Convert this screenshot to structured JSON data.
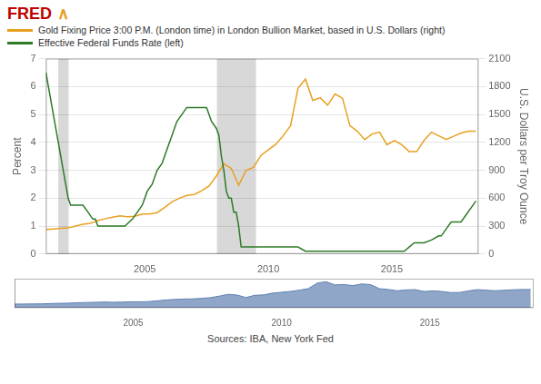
{
  "chart_data": [
    {
      "type": "line",
      "annotations": [
        {
          "text": "FRED",
          "color": "#c00000"
        },
        {
          "text": "∧",
          "color": "#e8a020"
        },
        {
          "text": "Sources: IBA, New York Fed"
        }
      ],
      "ylabel": "Percent",
      "y2label": "U.S. Dollars per Troy Ounce",
      "xlim": [
        2001,
        2018.5
      ],
      "xticks": [
        2005,
        2010,
        2015
      ],
      "ylim": [
        0,
        7
      ],
      "yticks": [
        0,
        1,
        2,
        3,
        4,
        5,
        6,
        7
      ],
      "y2lim": [
        0,
        2100
      ],
      "y2ticks": [
        0,
        300,
        600,
        900,
        1200,
        1500,
        1800,
        2100
      ],
      "grid": true,
      "legend": "top",
      "recessions": {
        "ranges": [
          [
            2001.5,
            2001.92
          ],
          [
            2007.92,
            2009.5
          ]
        ],
        "color": "#d8d8d8"
      },
      "series": [
        {
          "name": "Effective Federal Funds Rate (left)",
          "color": "#2d7a27",
          "axis": "y",
          "x": [
            2001.0,
            2001.1,
            2001.2,
            2001.3,
            2001.5,
            2001.6,
            2001.7,
            2001.8,
            2001.9,
            2002.0,
            2002.1,
            2002.3,
            2002.5,
            2002.7,
            2002.9,
            2003.0,
            2003.1,
            2003.2,
            2003.4,
            2003.6,
            2003.8,
            2004.0,
            2004.2,
            2004.5,
            2004.7,
            2004.9,
            2005.1,
            2005.3,
            2005.5,
            2005.7,
            2005.9,
            2006.1,
            2006.3,
            2006.5,
            2006.7,
            2006.9,
            2007.1,
            2007.3,
            2007.5,
            2007.7,
            2007.9,
            2008.0,
            2008.1,
            2008.2,
            2008.3,
            2008.4,
            2008.5,
            2008.6,
            2008.7,
            2008.8,
            2008.9,
            2009.0,
            2009.2,
            2009.4,
            2009.6,
            2009.8,
            2010.0,
            2010.2,
            2010.4,
            2010.6,
            2010.8,
            2011.0,
            2011.2,
            2011.5,
            2011.8,
            2012.0,
            2012.3,
            2012.6,
            2012.9,
            2013.2,
            2013.5,
            2013.8,
            2014.0,
            2014.3,
            2014.6,
            2014.9,
            2015.2,
            2015.5,
            2015.7,
            2015.9,
            2016.0,
            2016.3,
            2016.6,
            2016.9,
            2017.0,
            2017.2,
            2017.4,
            2017.6,
            2017.8,
            2018.0,
            2018.2,
            2018.4
          ],
          "values": [
            6.5,
            6.0,
            5.5,
            5.0,
            4.0,
            3.5,
            3.0,
            2.5,
            2.0,
            1.75,
            1.75,
            1.75,
            1.75,
            1.5,
            1.25,
            1.25,
            1.0,
            1.0,
            1.0,
            1.0,
            1.0,
            1.0,
            1.0,
            1.25,
            1.5,
            1.75,
            2.25,
            2.5,
            3.0,
            3.25,
            3.75,
            4.25,
            4.75,
            5.0,
            5.25,
            5.25,
            5.25,
            5.25,
            5.25,
            4.75,
            4.5,
            4.25,
            3.5,
            3.0,
            2.25,
            2.0,
            2.0,
            1.5,
            1.5,
            1.0,
            0.25,
            0.25,
            0.25,
            0.25,
            0.25,
            0.25,
            0.25,
            0.25,
            0.25,
            0.25,
            0.25,
            0.25,
            0.25,
            0.1,
            0.1,
            0.1,
            0.1,
            0.1,
            0.1,
            0.1,
            0.1,
            0.1,
            0.1,
            0.1,
            0.1,
            0.1,
            0.1,
            0.1,
            0.25,
            0.4,
            0.4,
            0.4,
            0.5,
            0.65,
            0.65,
            0.9,
            1.15,
            1.15,
            1.15,
            1.4,
            1.65,
            1.9
          ]
        },
        {
          "name": "Gold Fixing Price 3:00 P.M. (London time) in London Bullion Market, based in U.S. Dollars (right)",
          "color": "#e8a020",
          "axis": "y2",
          "x": [
            2001.0,
            2001.3,
            2001.6,
            2001.9,
            2002.2,
            2002.5,
            2002.8,
            2003.1,
            2003.4,
            2003.7,
            2004.0,
            2004.3,
            2004.6,
            2004.9,
            2005.2,
            2005.5,
            2005.8,
            2006.1,
            2006.4,
            2006.7,
            2007.0,
            2007.3,
            2007.6,
            2007.9,
            2008.2,
            2008.5,
            2008.8,
            2009.1,
            2009.4,
            2009.7,
            2010.0,
            2010.3,
            2010.6,
            2010.9,
            2011.2,
            2011.5,
            2011.8,
            2012.1,
            2012.4,
            2012.7,
            2013.0,
            2013.3,
            2013.6,
            2013.9,
            2014.2,
            2014.5,
            2014.8,
            2015.1,
            2015.4,
            2015.7,
            2016.0,
            2016.3,
            2016.6,
            2016.9,
            2017.2,
            2017.5,
            2017.8,
            2018.1,
            2018.4
          ],
          "values": [
            265,
            270,
            275,
            280,
            300,
            320,
            330,
            360,
            380,
            395,
            410,
            400,
            405,
            430,
            430,
            445,
            500,
            560,
            600,
            630,
            640,
            680,
            730,
            840,
            970,
            920,
            740,
            900,
            930,
            1060,
            1120,
            1180,
            1270,
            1380,
            1780,
            1880,
            1650,
            1680,
            1600,
            1720,
            1675,
            1380,
            1320,
            1230,
            1290,
            1310,
            1175,
            1220,
            1175,
            1100,
            1100,
            1220,
            1310,
            1270,
            1230,
            1265,
            1300,
            1320,
            1320
          ]
        }
      ]
    },
    {
      "type": "area",
      "xlim": [
        2001,
        2018.5
      ],
      "xticks": [
        2005,
        2010,
        2015
      ],
      "ylim": [
        0,
        2100
      ],
      "tick_labels": "x",
      "grid": false,
      "color": "#6080b0",
      "x": [
        2001.0,
        2001.3,
        2001.6,
        2001.9,
        2002.2,
        2002.5,
        2002.8,
        2003.1,
        2003.4,
        2003.7,
        2004.0,
        2004.3,
        2004.6,
        2004.9,
        2005.2,
        2005.5,
        2005.8,
        2006.1,
        2006.4,
        2006.7,
        2007.0,
        2007.3,
        2007.6,
        2007.9,
        2008.2,
        2008.5,
        2008.8,
        2009.1,
        2009.4,
        2009.7,
        2010.0,
        2010.3,
        2010.6,
        2010.9,
        2011.2,
        2011.5,
        2011.8,
        2012.1,
        2012.4,
        2012.7,
        2013.0,
        2013.3,
        2013.6,
        2013.9,
        2014.2,
        2014.5,
        2014.8,
        2015.1,
        2015.4,
        2015.7,
        2016.0,
        2016.3,
        2016.6,
        2016.9,
        2017.2,
        2017.5,
        2017.8,
        2018.1,
        2018.4
      ],
      "values": [
        265,
        270,
        275,
        280,
        300,
        320,
        330,
        360,
        380,
        395,
        410,
        400,
        405,
        430,
        430,
        445,
        500,
        560,
        600,
        630,
        640,
        680,
        730,
        840,
        970,
        920,
        740,
        900,
        930,
        1060,
        1120,
        1180,
        1270,
        1380,
        1780,
        1880,
        1650,
        1680,
        1600,
        1720,
        1675,
        1380,
        1320,
        1230,
        1290,
        1310,
        1175,
        1220,
        1175,
        1100,
        1100,
        1220,
        1310,
        1270,
        1230,
        1265,
        1300,
        1320,
        1320
      ]
    }
  ]
}
